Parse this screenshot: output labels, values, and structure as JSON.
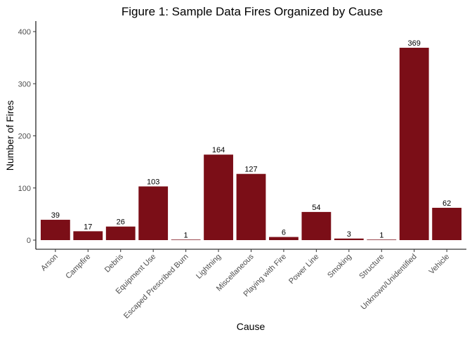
{
  "chart_data": {
    "type": "bar",
    "title": "Figure 1: Sample Data Fires Organized by Cause",
    "xlabel": "Cause",
    "ylabel": "Number of Fires",
    "categories": [
      "Arson",
      "Campfire",
      "Debris",
      "Equipment Use",
      "Escaped Prescribed Burn",
      "Lightning",
      "Miscellaneous",
      "Playing with Fire",
      "Power Line",
      "Smoking",
      "Structure",
      "Unknown/Unidentified",
      "Vehicle"
    ],
    "values": [
      39,
      17,
      26,
      103,
      1,
      164,
      127,
      6,
      54,
      3,
      1,
      369,
      62
    ],
    "data_labels": [
      "39",
      "17",
      "26",
      "103",
      "1",
      "164",
      "127",
      "6",
      "54",
      "3",
      "1",
      "369",
      "62"
    ],
    "ylim": [
      0,
      400
    ],
    "yticks": [
      0,
      100,
      200,
      300,
      400
    ],
    "ytick_labels": [
      "0",
      "100",
      "200",
      "300",
      "400"
    ],
    "bar_color": "#7b0e17",
    "grid": false,
    "legend": "none"
  }
}
